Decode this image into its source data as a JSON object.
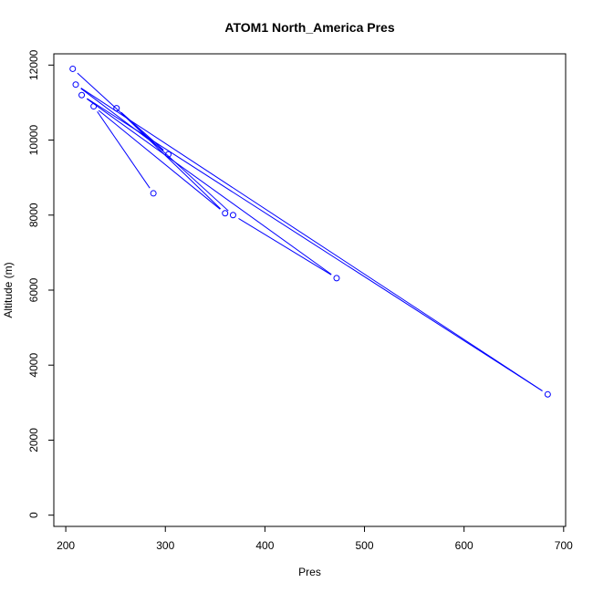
{
  "colors": {
    "series": "#0000ff",
    "axis": "#000000",
    "background": "#ffffff"
  },
  "chart_data": {
    "type": "line",
    "title": "ATOM1 North_America Pres",
    "xlabel": "Pres",
    "ylabel": "Altitude (m)",
    "xlim": [
      188,
      702
    ],
    "ylim": [
      -300,
      12300
    ],
    "xticks": [
      200,
      300,
      400,
      500,
      600,
      700
    ],
    "yticks": [
      0,
      2000,
      4000,
      6000,
      8000,
      10000,
      12000
    ],
    "grid": false,
    "legend": "none",
    "marker": "open-circle",
    "series": [
      {
        "x": [
          288,
          228,
          360,
          251,
          303,
          210,
          684,
          216,
          472,
          368,
          207
        ],
        "y": [
          8580,
          10900,
          8050,
          10850,
          9620,
          11480,
          3220,
          11200,
          6320,
          8000,
          11900
        ]
      }
    ]
  }
}
